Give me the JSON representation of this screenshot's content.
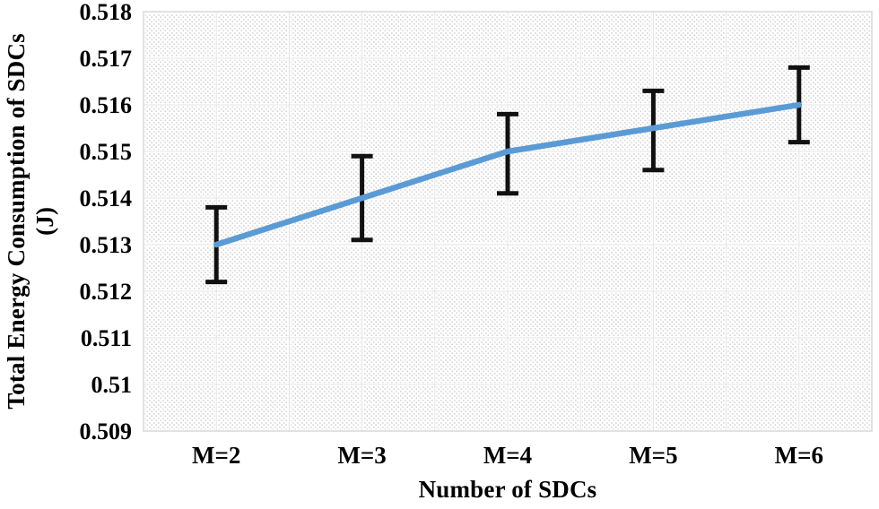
{
  "figure": {
    "background": "#ffffff",
    "hatch_color": "#cfcfcf",
    "gridline_color": "#ffffff",
    "gridline_tint": "#e4e4e4",
    "plot_border_color": "#d9d9d9",
    "line_color": "#5b9bd5",
    "error_bar_color": "#111111",
    "text_color": "#000000"
  },
  "chart_data": {
    "type": "line",
    "title": "",
    "xlabel": "Number of SDCs",
    "ylabel": "Total Energy  Consumption of SDCs",
    "ylabel_line2": "(J)",
    "categories": [
      "M=2",
      "M=3",
      "M=4",
      "M=5",
      "M=6"
    ],
    "series": [
      {
        "name": "Total Energy Consumption of SDCs",
        "values": [
          0.513,
          0.514,
          0.515,
          0.5155,
          0.516
        ],
        "error_low": [
          0.5122,
          0.5131,
          0.5141,
          0.5146,
          0.5152
        ],
        "error_high": [
          0.5138,
          0.5149,
          0.5158,
          0.5163,
          0.5168
        ]
      }
    ],
    "ylim": [
      0.509,
      0.518
    ],
    "ytick_step": 0.001,
    "ytick_labels": [
      "0.509",
      "0.51",
      "0.511",
      "0.512",
      "0.513",
      "0.514",
      "0.515",
      "0.516",
      "0.517",
      "0.518"
    ],
    "grid": true,
    "legend": "none",
    "plot_background": "diagonal-dotted-hatch"
  }
}
